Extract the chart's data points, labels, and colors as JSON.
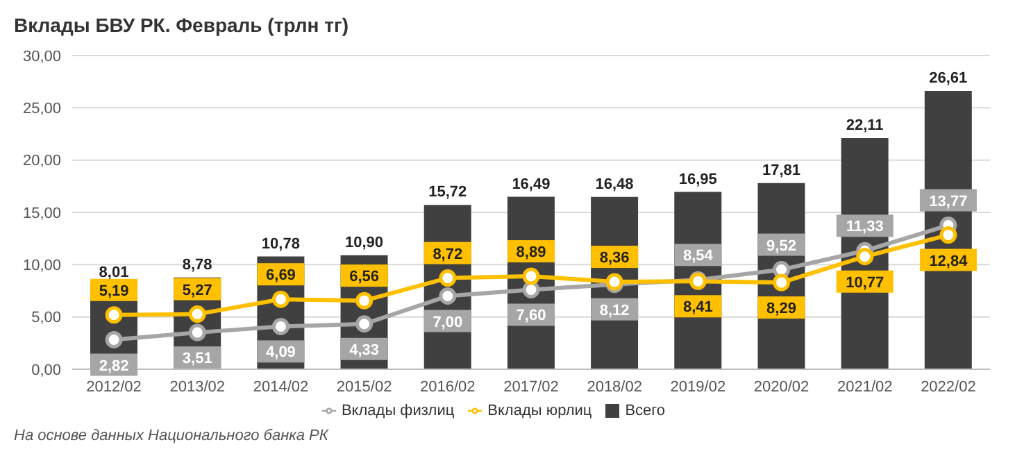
{
  "chart_data": {
    "type": "bar",
    "title": "Вклады БВУ РК. Февраль (трлн тг)",
    "categories": [
      "2012/02",
      "2013/02",
      "2014/02",
      "2015/02",
      "2016/02",
      "2017/02",
      "2018/02",
      "2019/02",
      "2020/02",
      "2021/02",
      "2022/02"
    ],
    "series": [
      {
        "name": "Всего",
        "color": "#404040",
        "values": [
          8.01,
          8.78,
          10.78,
          10.9,
          15.72,
          16.49,
          16.48,
          16.95,
          17.81,
          22.11,
          26.61
        ],
        "value_labels": [
          "8,01",
          "8,78",
          "10,78",
          "10,90",
          "15,72",
          "16,49",
          "16,48",
          "16,95",
          "17,81",
          "22,11",
          "26,61"
        ]
      },
      {
        "name": "Вклады физлиц",
        "type": "line",
        "color": "#a6a6a6",
        "values": [
          2.82,
          3.51,
          4.09,
          4.33,
          7.0,
          7.6,
          8.12,
          8.54,
          9.52,
          11.33,
          13.77
        ],
        "value_labels": [
          "2,82",
          "3,51",
          "4,09",
          "4,33",
          "7,00",
          "7,60",
          "8,12",
          "8,54",
          "9,52",
          "11,33",
          "13,77"
        ]
      },
      {
        "name": "Вклады юрлиц",
        "type": "line",
        "color": "#ffc000",
        "values": [
          5.19,
          5.27,
          6.69,
          6.56,
          8.72,
          8.89,
          8.36,
          8.41,
          8.29,
          10.77,
          12.84
        ],
        "value_labels": [
          "5,19",
          "5,27",
          "6,69",
          "6,56",
          "8,72",
          "8,89",
          "8,36",
          "8,41",
          "8,29",
          "10,77",
          "12,84"
        ]
      }
    ],
    "ylim": [
      0,
      30
    ],
    "yticks": [
      {
        "value": 0,
        "label": "0,00"
      },
      {
        "value": 5,
        "label": "5,00"
      },
      {
        "value": 10,
        "label": "10,00"
      },
      {
        "value": 15,
        "label": "15,00"
      },
      {
        "value": 20,
        "label": "20,00"
      },
      {
        "value": 25,
        "label": "25,00"
      },
      {
        "value": 30,
        "label": "30,00"
      }
    ],
    "grid": "y",
    "legend": "bottom",
    "marker": "circle",
    "line_style": "solid",
    "annotations": [
      "На основе данных Национального банка РК"
    ]
  }
}
